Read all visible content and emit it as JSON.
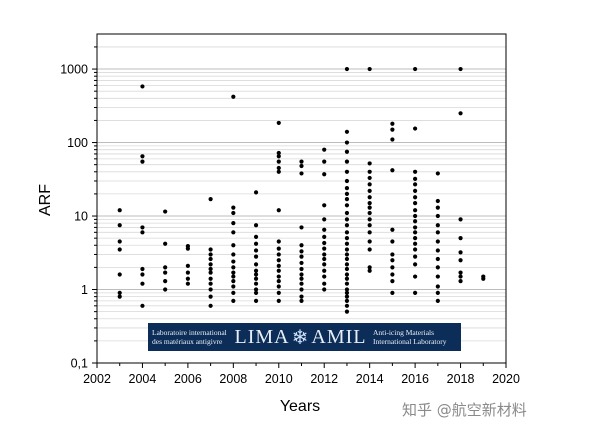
{
  "chart_data": {
    "type": "scatter",
    "title": "",
    "xlabel": "Years",
    "ylabel": "ARF",
    "x_scale": "linear",
    "y_scale": "log",
    "xlim": [
      2002,
      2020
    ],
    "ylim": [
      0.1,
      3000
    ],
    "x_ticks": [
      2002,
      2004,
      2006,
      2008,
      2010,
      2012,
      2014,
      2016,
      2018,
      2020
    ],
    "y_ticks": [
      0.1,
      1,
      10,
      100,
      1000
    ],
    "y_tick_labels": [
      "0,1",
      "1",
      "10",
      "100",
      "1000"
    ],
    "grid": "horizontal dotted at 0.1-step minor and major decades",
    "marker_color": "#000000",
    "series": [
      {
        "points": [
          [
            2003,
            0.8
          ],
          [
            2003,
            0.9
          ],
          [
            2003,
            1.6
          ],
          [
            2003,
            3.5
          ],
          [
            2003,
            4.5
          ],
          [
            2003,
            7.5
          ],
          [
            2003,
            12
          ],
          [
            2004,
            0.6
          ],
          [
            2004,
            1.2
          ],
          [
            2004,
            1.6
          ],
          [
            2004,
            1.9
          ],
          [
            2004,
            6
          ],
          [
            2004,
            7
          ],
          [
            2004,
            55
          ],
          [
            2004,
            65
          ],
          [
            2004,
            580
          ],
          [
            2005,
            1.0
          ],
          [
            2005,
            1.3
          ],
          [
            2005,
            1.7
          ],
          [
            2005,
            2.0
          ],
          [
            2005,
            4.2
          ],
          [
            2005,
            11.5
          ],
          [
            2006,
            1.2
          ],
          [
            2006,
            1.4
          ],
          [
            2006,
            1.7
          ],
          [
            2006,
            2.1
          ],
          [
            2006,
            3.6
          ],
          [
            2006,
            3.9
          ],
          [
            2007,
            0.6
          ],
          [
            2007,
            0.8
          ],
          [
            2007,
            1.0
          ],
          [
            2007,
            1.2
          ],
          [
            2007,
            1.4
          ],
          [
            2007,
            1.7
          ],
          [
            2007,
            1.9
          ],
          [
            2007,
            2.2
          ],
          [
            2007,
            2.6
          ],
          [
            2007,
            3.0
          ],
          [
            2007,
            3.5
          ],
          [
            2007,
            17
          ],
          [
            2008,
            0.7
          ],
          [
            2008,
            0.9
          ],
          [
            2008,
            1.1
          ],
          [
            2008,
            1.3
          ],
          [
            2008,
            1.5
          ],
          [
            2008,
            1.7
          ],
          [
            2008,
            2.0
          ],
          [
            2008,
            2.4
          ],
          [
            2008,
            3.0
          ],
          [
            2008,
            4.0
          ],
          [
            2008,
            6.0
          ],
          [
            2008,
            8.0
          ],
          [
            2008,
            11
          ],
          [
            2008,
            13
          ],
          [
            2008,
            420
          ],
          [
            2009,
            0.7
          ],
          [
            2009,
            0.9
          ],
          [
            2009,
            1.0
          ],
          [
            2009,
            1.2
          ],
          [
            2009,
            1.4
          ],
          [
            2009,
            1.6
          ],
          [
            2009,
            1.8
          ],
          [
            2009,
            2.2
          ],
          [
            2009,
            2.8
          ],
          [
            2009,
            3.4
          ],
          [
            2009,
            4.2
          ],
          [
            2009,
            5.2
          ],
          [
            2009,
            7.5
          ],
          [
            2009,
            21
          ],
          [
            2010,
            0.7
          ],
          [
            2010,
            0.9
          ],
          [
            2010,
            1.1
          ],
          [
            2010,
            1.3
          ],
          [
            2010,
            1.5
          ],
          [
            2010,
            1.8
          ],
          [
            2010,
            2.1
          ],
          [
            2010,
            2.5
          ],
          [
            2010,
            3.0
          ],
          [
            2010,
            3.6
          ],
          [
            2010,
            4.5
          ],
          [
            2010,
            12
          ],
          [
            2010,
            40
          ],
          [
            2010,
            45
          ],
          [
            2010,
            55
          ],
          [
            2010,
            65
          ],
          [
            2010,
            72
          ],
          [
            2010,
            185
          ],
          [
            2011,
            0.7
          ],
          [
            2011,
            0.8
          ],
          [
            2011,
            1.0
          ],
          [
            2011,
            1.2
          ],
          [
            2011,
            1.4
          ],
          [
            2011,
            1.6
          ],
          [
            2011,
            1.9
          ],
          [
            2011,
            2.3
          ],
          [
            2011,
            2.8
          ],
          [
            2011,
            3.3
          ],
          [
            2011,
            4.0
          ],
          [
            2011,
            7.0
          ],
          [
            2011,
            38
          ],
          [
            2011,
            48
          ],
          [
            2011,
            55
          ],
          [
            2012,
            1.0
          ],
          [
            2012,
            1.2
          ],
          [
            2012,
            1.5
          ],
          [
            2012,
            1.8
          ],
          [
            2012,
            2.2
          ],
          [
            2012,
            2.6
          ],
          [
            2012,
            3.0
          ],
          [
            2012,
            3.6
          ],
          [
            2012,
            4.3
          ],
          [
            2012,
            5.2
          ],
          [
            2012,
            6.5
          ],
          [
            2012,
            9.0
          ],
          [
            2012,
            14
          ],
          [
            2012,
            37
          ],
          [
            2012,
            55
          ],
          [
            2012,
            80
          ],
          [
            2013,
            0.5
          ],
          [
            2013,
            0.6
          ],
          [
            2013,
            0.7
          ],
          [
            2013,
            0.8
          ],
          [
            2013,
            0.9
          ],
          [
            2013,
            1.0
          ],
          [
            2013,
            1.2
          ],
          [
            2013,
            1.4
          ],
          [
            2013,
            1.6
          ],
          [
            2013,
            1.9
          ],
          [
            2013,
            2.2
          ],
          [
            2013,
            2.6
          ],
          [
            2013,
            3.0
          ],
          [
            2013,
            3.5
          ],
          [
            2013,
            4.2
          ],
          [
            2013,
            5.0
          ],
          [
            2013,
            6.0
          ],
          [
            2013,
            7.5
          ],
          [
            2013,
            9.0
          ],
          [
            2013,
            11
          ],
          [
            2013,
            14
          ],
          [
            2013,
            17
          ],
          [
            2013,
            20
          ],
          [
            2013,
            24
          ],
          [
            2013,
            30
          ],
          [
            2013,
            40
          ],
          [
            2013,
            55
          ],
          [
            2013,
            75
          ],
          [
            2013,
            100
          ],
          [
            2013,
            140
          ],
          [
            2013,
            1000
          ],
          [
            2014,
            1.8
          ],
          [
            2014,
            2.0
          ],
          [
            2014,
            3.5
          ],
          [
            2014,
            4.5
          ],
          [
            2014,
            6.0
          ],
          [
            2014,
            7.5
          ],
          [
            2014,
            9.0
          ],
          [
            2014,
            11
          ],
          [
            2014,
            13
          ],
          [
            2014,
            15
          ],
          [
            2014,
            18
          ],
          [
            2014,
            22
          ],
          [
            2014,
            27
          ],
          [
            2014,
            33
          ],
          [
            2014,
            40
          ],
          [
            2014,
            52
          ],
          [
            2014,
            1000
          ],
          [
            2015,
            0.9
          ],
          [
            2015,
            1.3
          ],
          [
            2015,
            1.6
          ],
          [
            2015,
            2.0
          ],
          [
            2015,
            2.5
          ],
          [
            2015,
            3.0
          ],
          [
            2015,
            4.5
          ],
          [
            2015,
            6.5
          ],
          [
            2015,
            42
          ],
          [
            2015,
            110
          ],
          [
            2015,
            150
          ],
          [
            2015,
            180
          ],
          [
            2016,
            0.9
          ],
          [
            2016,
            1.5
          ],
          [
            2016,
            2.2
          ],
          [
            2016,
            2.8
          ],
          [
            2016,
            3.5
          ],
          [
            2016,
            4.2
          ],
          [
            2016,
            5.0
          ],
          [
            2016,
            6.0
          ],
          [
            2016,
            7.0
          ],
          [
            2016,
            8.5
          ],
          [
            2016,
            10
          ],
          [
            2016,
            12
          ],
          [
            2016,
            15
          ],
          [
            2016,
            18
          ],
          [
            2016,
            22
          ],
          [
            2016,
            27
          ],
          [
            2016,
            32
          ],
          [
            2016,
            40
          ],
          [
            2016,
            155
          ],
          [
            2016,
            1000
          ],
          [
            2017,
            0.7
          ],
          [
            2017,
            0.9
          ],
          [
            2017,
            1.1
          ],
          [
            2017,
            1.5
          ],
          [
            2017,
            2.0
          ],
          [
            2017,
            2.6
          ],
          [
            2017,
            3.4
          ],
          [
            2017,
            4.5
          ],
          [
            2017,
            6.0
          ],
          [
            2017,
            7.5
          ],
          [
            2017,
            10
          ],
          [
            2017,
            13
          ],
          [
            2017,
            16
          ],
          [
            2017,
            38
          ],
          [
            2018,
            1.3
          ],
          [
            2018,
            1.5
          ],
          [
            2018,
            1.7
          ],
          [
            2018,
            2.5
          ],
          [
            2018,
            3.2
          ],
          [
            2018,
            5.0
          ],
          [
            2018,
            9.0
          ],
          [
            2018,
            250
          ],
          [
            2018,
            1000
          ],
          [
            2019,
            1.4
          ],
          [
            2019,
            1.5
          ]
        ]
      }
    ]
  },
  "logo": {
    "left_line1": "Laboratoire international",
    "left_line2": "des matériaux antigivre",
    "main_left": "LIMA",
    "main_right": "AMIL",
    "right_line1": "Anti-icing Materials",
    "right_line2": "International Laboratory"
  },
  "watermark": "知乎 @航空新材料"
}
